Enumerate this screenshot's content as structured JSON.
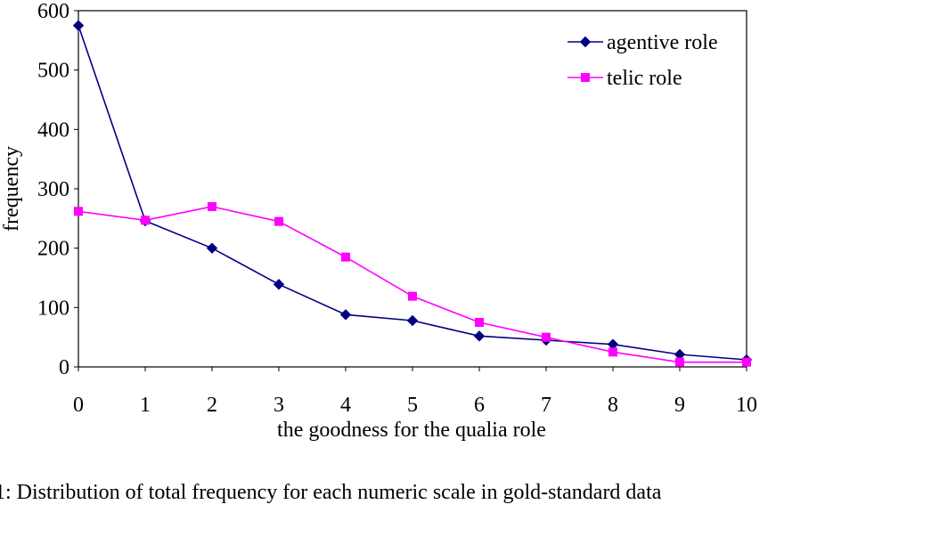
{
  "chart_data": {
    "type": "line",
    "x": [
      0,
      1,
      2,
      3,
      4,
      5,
      6,
      7,
      8,
      9,
      10
    ],
    "series": [
      {
        "name": "agentive role",
        "values": [
          575,
          246,
          200,
          139,
          88,
          78,
          52,
          45,
          38,
          21,
          12
        ],
        "color": "#000080",
        "marker": "diamond"
      },
      {
        "name": "telic role",
        "values": [
          262,
          247,
          270,
          245,
          185,
          119,
          75,
          50,
          25,
          8,
          8
        ],
        "color": "#ff00ff",
        "marker": "square"
      }
    ],
    "xlabel": "the goodness for the qualia role",
    "ylabel": "frequency",
    "xlim": [
      0,
      10
    ],
    "ylim": [
      0,
      600
    ],
    "yticks": [
      "0",
      "100",
      "200",
      "300",
      "400",
      "500",
      "600"
    ],
    "xticks": [
      "0",
      "1",
      "2",
      "3",
      "4",
      "5",
      "6",
      "7",
      "8",
      "9",
      "10"
    ],
    "grid": false,
    "legend_position": "top-right"
  },
  "caption": "1: Distribution of total frequency for each numeric scale in gold-standard data"
}
